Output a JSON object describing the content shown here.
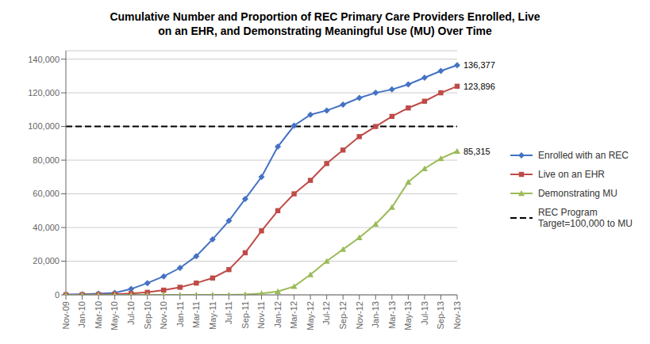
{
  "chart_data": {
    "type": "line",
    "title": "Cumulative Number and Proportion of REC Primary Care Providers Enrolled, Live\non an EHR, and Demonstrating Meaningful Use (MU) Over Time",
    "categories": [
      "Nov-09",
      "Jan-10",
      "Mar-10",
      "May-10",
      "Jul-10",
      "Sep-10",
      "Nov-10",
      "Jan-11",
      "Mar-11",
      "May-11",
      "Jul-11",
      "Sep-11",
      "Nov-11",
      "Jan-12",
      "Mar-12",
      "May-12",
      "Jul-12",
      "Sep-12",
      "Nov-12",
      "Jan-13",
      "Mar-13",
      "May-13",
      "Jul-13",
      "Sep-13",
      "Nov-13"
    ],
    "series": [
      {
        "name": "Enrolled with an REC",
        "color": "#4472C4",
        "marker": "diamond",
        "values": [
          200,
          400,
          700,
          1200,
          3500,
          7000,
          11000,
          16000,
          23000,
          33000,
          44000,
          57000,
          70000,
          88000,
          100500,
          107000,
          109500,
          113000,
          117000,
          120000,
          122000,
          125000,
          129000,
          133000,
          136377
        ]
      },
      {
        "name": "Live on an EHR",
        "color": "#BE4B48",
        "marker": "square",
        "values": [
          50,
          100,
          200,
          400,
          800,
          1500,
          2800,
          4500,
          7000,
          10000,
          15000,
          25000,
          38000,
          50000,
          60000,
          68000,
          78000,
          86000,
          94000,
          100000,
          106000,
          111000,
          115000,
          120000,
          123896
        ]
      },
      {
        "name": "Demonstrating MU",
        "color": "#9BBB59",
        "marker": "triangle",
        "values": [
          0,
          0,
          0,
          0,
          0,
          0,
          0,
          0,
          0,
          0,
          0,
          200,
          800,
          2000,
          5000,
          12000,
          20000,
          27000,
          34000,
          42000,
          52000,
          67000,
          75000,
          81000,
          85315
        ]
      }
    ],
    "target": {
      "name": "REC Program\nTarget=100,000 to MU",
      "value": 100000,
      "color": "#000000",
      "line_style": "dashed"
    },
    "annotations": [
      {
        "x": "Nov-13",
        "y": 136377,
        "text": "136,377",
        "color": "#000000"
      },
      {
        "x": "Nov-13",
        "y": 123896,
        "text": "123,896",
        "color": "#000000"
      },
      {
        "x": "Nov-13",
        "y": 85315,
        "text": "85,315",
        "color": "#000000"
      }
    ],
    "ylim": [
      0,
      145000
    ],
    "yticks": [
      0,
      {
        "value": 20000,
        "label": "20,000"
      },
      {
        "value": 40000,
        "label": "40,000"
      },
      {
        "value": 60000,
        "label": "60,000"
      },
      {
        "value": 80000,
        "label": "80,000"
      },
      {
        "value": 100000,
        "label": "100,000"
      },
      {
        "value": 120000,
        "label": "120,000"
      },
      {
        "value": 140000,
        "label": "140,000"
      }
    ],
    "grid": true,
    "legend": "right"
  }
}
